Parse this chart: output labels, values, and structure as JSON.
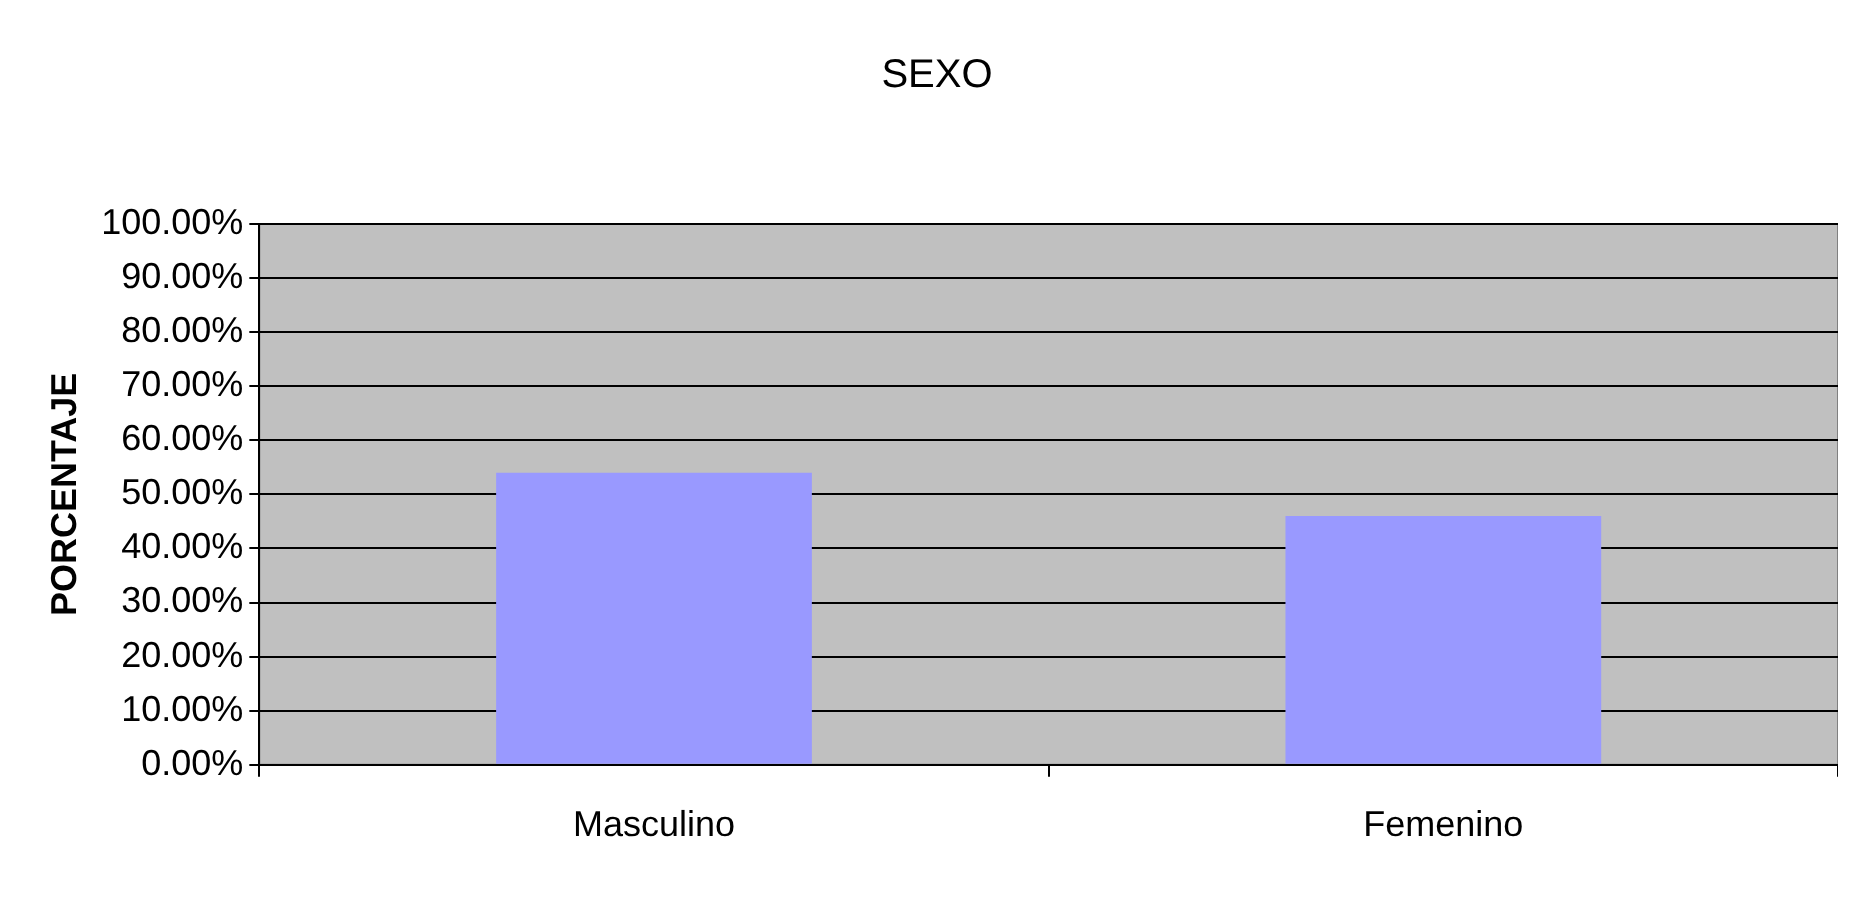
{
  "chart_data": {
    "type": "bar",
    "title": "SEXO",
    "ylabel": "PORCENTAJE",
    "categories": [
      "Masculino",
      "Femenino"
    ],
    "values": [
      54,
      46
    ],
    "color": "#9999ff",
    "ylim": [
      0,
      100
    ],
    "yticks": [
      {
        "value": 0,
        "label": "0.00%"
      },
      {
        "value": 10,
        "label": "10.00%"
      },
      {
        "value": 20,
        "label": "20.00%"
      },
      {
        "value": 30,
        "label": "30.00%"
      },
      {
        "value": 40,
        "label": "40.00%"
      },
      {
        "value": 50,
        "label": "50.00%"
      },
      {
        "value": 60,
        "label": "60.00%"
      },
      {
        "value": 70,
        "label": "70.00%"
      },
      {
        "value": 80,
        "label": "80.00%"
      },
      {
        "value": 90,
        "label": "90.00%"
      },
      {
        "value": 100,
        "label": "100.00%"
      }
    ],
    "grid": "y",
    "legend": false
  }
}
